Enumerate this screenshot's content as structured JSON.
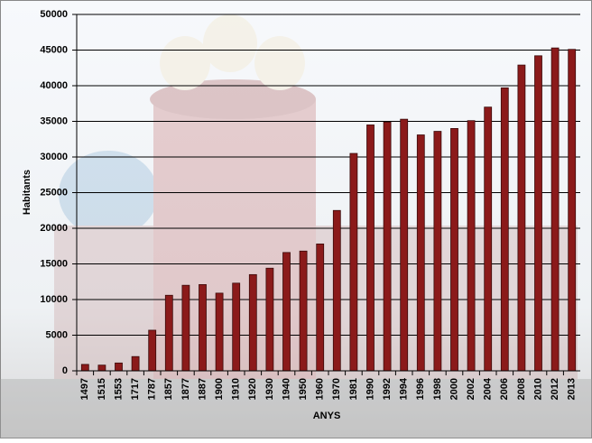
{
  "chart_data": {
    "type": "bar",
    "y_axis_label": "Habitants",
    "x_axis_label": "ANYS",
    "categories": [
      "1497",
      "1515",
      "1553",
      "1717",
      "1787",
      "1857",
      "1877",
      "1887",
      "1900",
      "1910",
      "1920",
      "1930",
      "1940",
      "1950",
      "1960",
      "1970",
      "1981",
      "1990",
      "1992",
      "1994",
      "1996",
      "1998",
      "2000",
      "2002",
      "2004",
      "2006",
      "2008",
      "2010",
      "2012",
      "2013"
    ],
    "values": [
      900,
      800,
      1100,
      2000,
      5700,
      10600,
      12000,
      12100,
      10900,
      12300,
      13500,
      14400,
      16600,
      16800,
      17800,
      22500,
      30500,
      34500,
      34900,
      35300,
      33100,
      33600,
      34000,
      35100,
      37000,
      39700,
      42900,
      44200,
      45300,
      45100
    ],
    "color": "#8b1a1a",
    "ylim": [
      0,
      50000
    ],
    "yticks": [
      0,
      5000,
      10000,
      15000,
      20000,
      25000,
      30000,
      35000,
      40000,
      45000,
      50000
    ],
    "grid": true
  }
}
